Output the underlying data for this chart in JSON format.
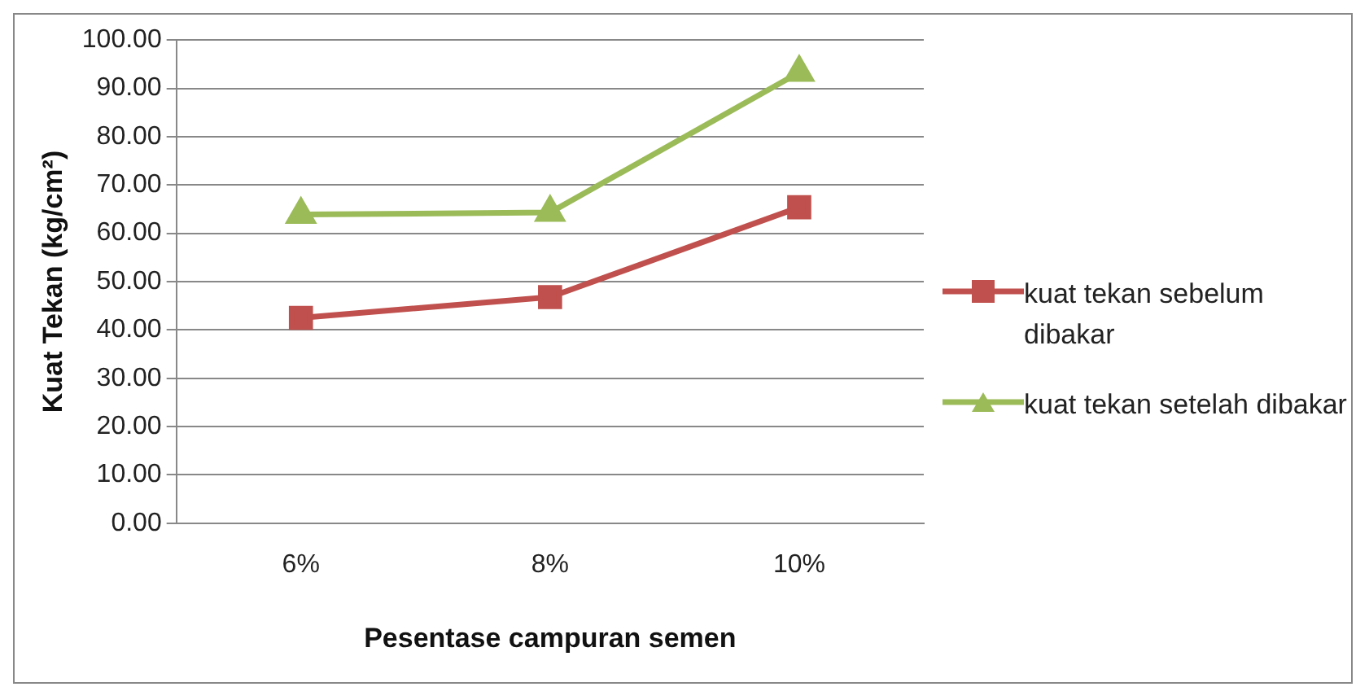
{
  "chart_data": {
    "type": "line",
    "xlabel": "Pesentase campuran semen",
    "ylabel": "Kuat Tekan (kg/cm²)",
    "categories": [
      "6%",
      "8%",
      "10%"
    ],
    "series": [
      {
        "name": "kuat tekan sebelum dibakar",
        "color": "#c0504d",
        "values": [
          42.5,
          46.8,
          65.4
        ],
        "marker": "square"
      },
      {
        "name": "kuat tekan setelah dibakar",
        "color": "#9bbb59",
        "values": [
          63.9,
          64.3,
          93.3
        ],
        "marker": "triangle"
      }
    ],
    "ylim": [
      0,
      100
    ],
    "yticks": [
      {
        "value": 0,
        "label": "0.00"
      },
      {
        "value": 10,
        "label": "10.00"
      },
      {
        "value": 20,
        "label": "20.00"
      },
      {
        "value": 30,
        "label": "30.00"
      },
      {
        "value": 40,
        "label": "40.00"
      },
      {
        "value": 50,
        "label": "50.00"
      },
      {
        "value": 60,
        "label": "60.00"
      },
      {
        "value": 70,
        "label": "70.00"
      },
      {
        "value": 80,
        "label": "80.00"
      },
      {
        "value": 90,
        "label": "90.00"
      },
      {
        "value": 100,
        "label": "100.00"
      }
    ],
    "grid": "y",
    "legend": "right",
    "line_style": "solid"
  }
}
